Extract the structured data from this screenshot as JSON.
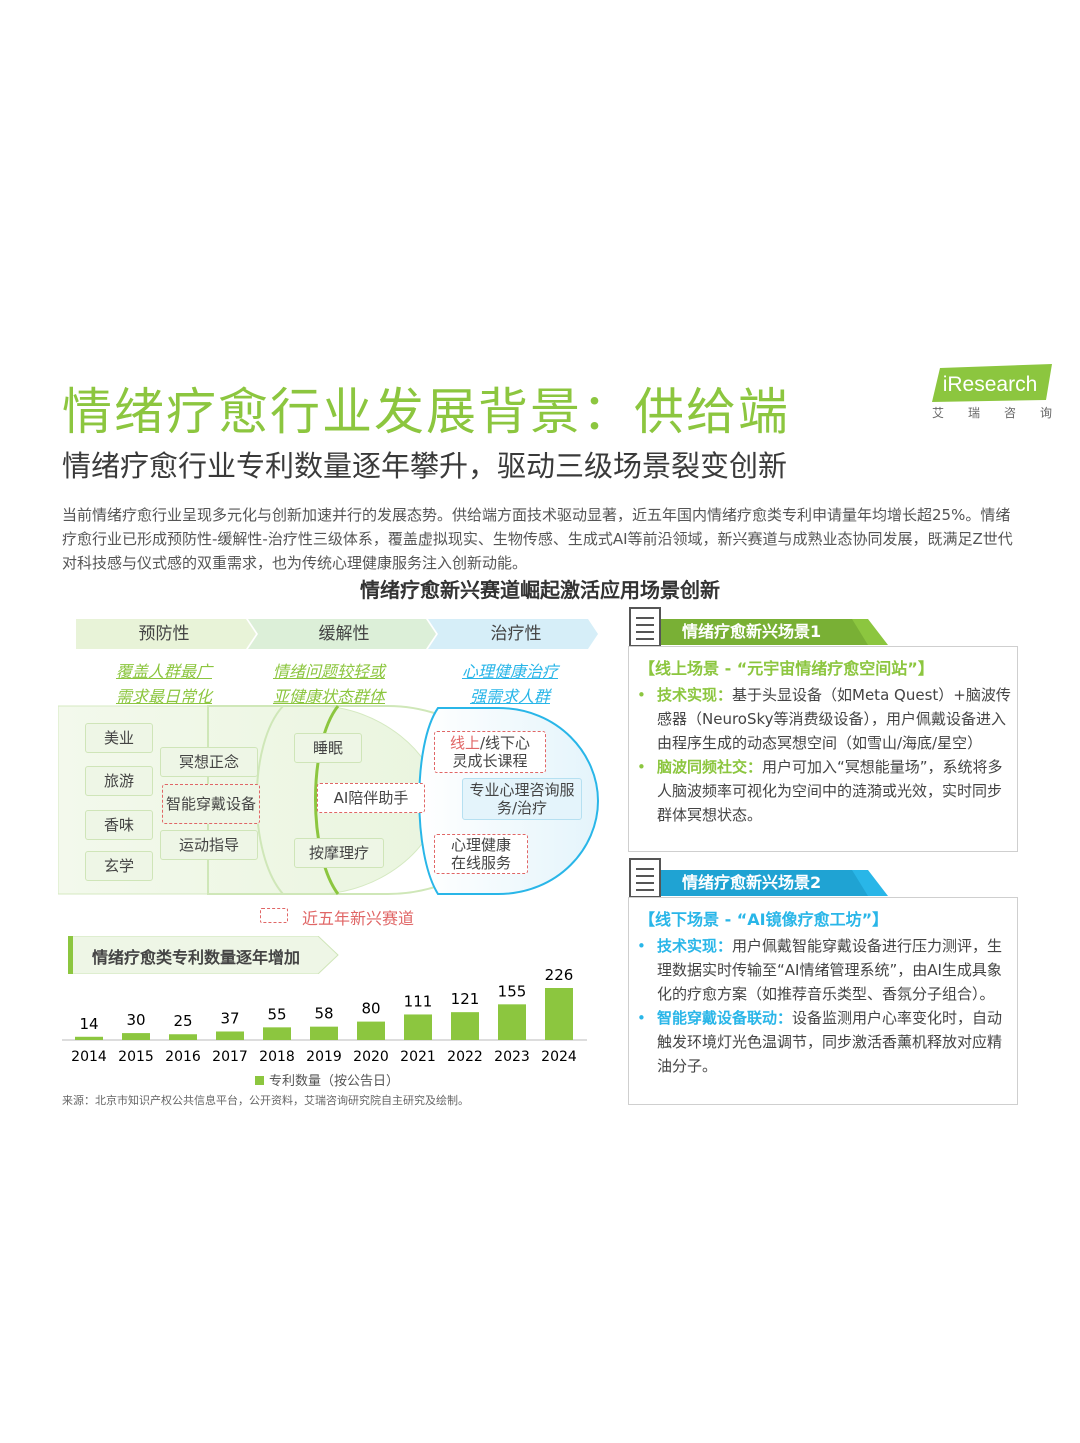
{
  "header": {
    "title": "情绪疗愈行业发展背景：供给端",
    "subtitle": "情绪疗愈行业专利数量逐年攀升，驱动三级场景裂变创新",
    "logo_text": "iResearch",
    "logo_cn": [
      "艾",
      "瑞",
      "咨",
      "询"
    ]
  },
  "intro": "当前情绪疗愈行业呈现多元化与创新加速并行的发展态势。供给端方面技术驱动显著，近五年国内情绪疗愈类专利申请量年均增长超25%。情绪疗愈行业已形成预防性-缓解性-治疗性三级体系，覆盖虚拟现实、生物传感、生成式AI等前沿领域，新兴赛道与成熟业态协同发展，既满足Z世代对科技感与仪式感的双重需求，也为传统心理健康服务注入创新动能。",
  "main_title": "情绪疗愈新兴赛道崛起激活应用场景创新",
  "colors": {
    "accent": "#8cc63f",
    "blue": "#29b6e8",
    "dashed": "#e06666"
  },
  "phases": [
    {
      "label": "预防性",
      "goals": [
        "覆盖人群最广",
        "需求最日常化"
      ]
    },
    {
      "label": "缓解性",
      "goals": [
        "情绪问题较轻或",
        "亚健康状态群体"
      ]
    },
    {
      "label": "治疗性",
      "goals": [
        "心理健康治疗",
        "强需求人群"
      ]
    }
  ],
  "tags": {
    "t1": "美业",
    "t2": "旅游",
    "t3": "香味",
    "t4": "玄学",
    "t5": "冥想正念",
    "t6": "智能穿戴设备",
    "t7": "运动指导",
    "t8": "睡眠",
    "t9": "AI陪伴助手",
    "t10": "按摩理疗",
    "t11a": "线上",
    "t11b": "/线下心",
    "t11c": "灵成长课程",
    "t12": "专业心理咨询服务/治疗",
    "t13": "心理健康在线服务"
  },
  "legend_dashed": "近五年新兴赛道",
  "patent_banner": "情绪疗愈类专利数量逐年增加",
  "chart_data": {
    "type": "bar",
    "categories": [
      "2014",
      "2015",
      "2016",
      "2017",
      "2018",
      "2019",
      "2020",
      "2021",
      "2022",
      "2023",
      "2024"
    ],
    "series": [
      {
        "name": "专利数量（按公告日）",
        "values": [
          14,
          30,
          25,
          37,
          55,
          58,
          80,
          111,
          121,
          155,
          226
        ]
      }
    ],
    "title": "情绪疗愈类专利数量逐年增加",
    "xlabel": "",
    "ylabel": "",
    "legend": "bottom"
  },
  "source": "来源：北京市知识产权公共信息平台，公开资料，艾瑞咨询研究院自主研究及绘制。",
  "scene1": {
    "tab": "情绪疗愈新兴场景1",
    "heading": "【线上场景 - “元宇宙情绪疗愈空间站”】",
    "items": [
      {
        "key": "技术实现：",
        "text": "基于头显设备（如Meta Quest）+脑波传感器（NeuroSky等消费级设备），用户佩戴设备进入由程序生成的动态冥想空间（如雪山/海底/星空）"
      },
      {
        "key": "脑波同频社交：",
        "text": "用户可加入“冥想能量场”，系统将多人脑波频率可视化为空间中的涟漪或光效，实时同步群体冥想状态。"
      }
    ]
  },
  "scene2": {
    "tab": "情绪疗愈新兴场景2",
    "heading": "【线下场景 - “AI镜像疗愈工坊”】",
    "items": [
      {
        "key": "技术实现：",
        "text": "用户佩戴智能穿戴设备进行压力测评，生理数据实时传输至“AI情绪管理系统”，由AI生成具象化的疗愈方案（如推荐音乐类型、香氛分子组合）。"
      },
      {
        "key": "智能穿戴设备联动：",
        "text": "设备监测用户心率变化时，自动触发环境灯光色温调节，同步激活香薰机释放对应精油分子。"
      }
    ]
  }
}
